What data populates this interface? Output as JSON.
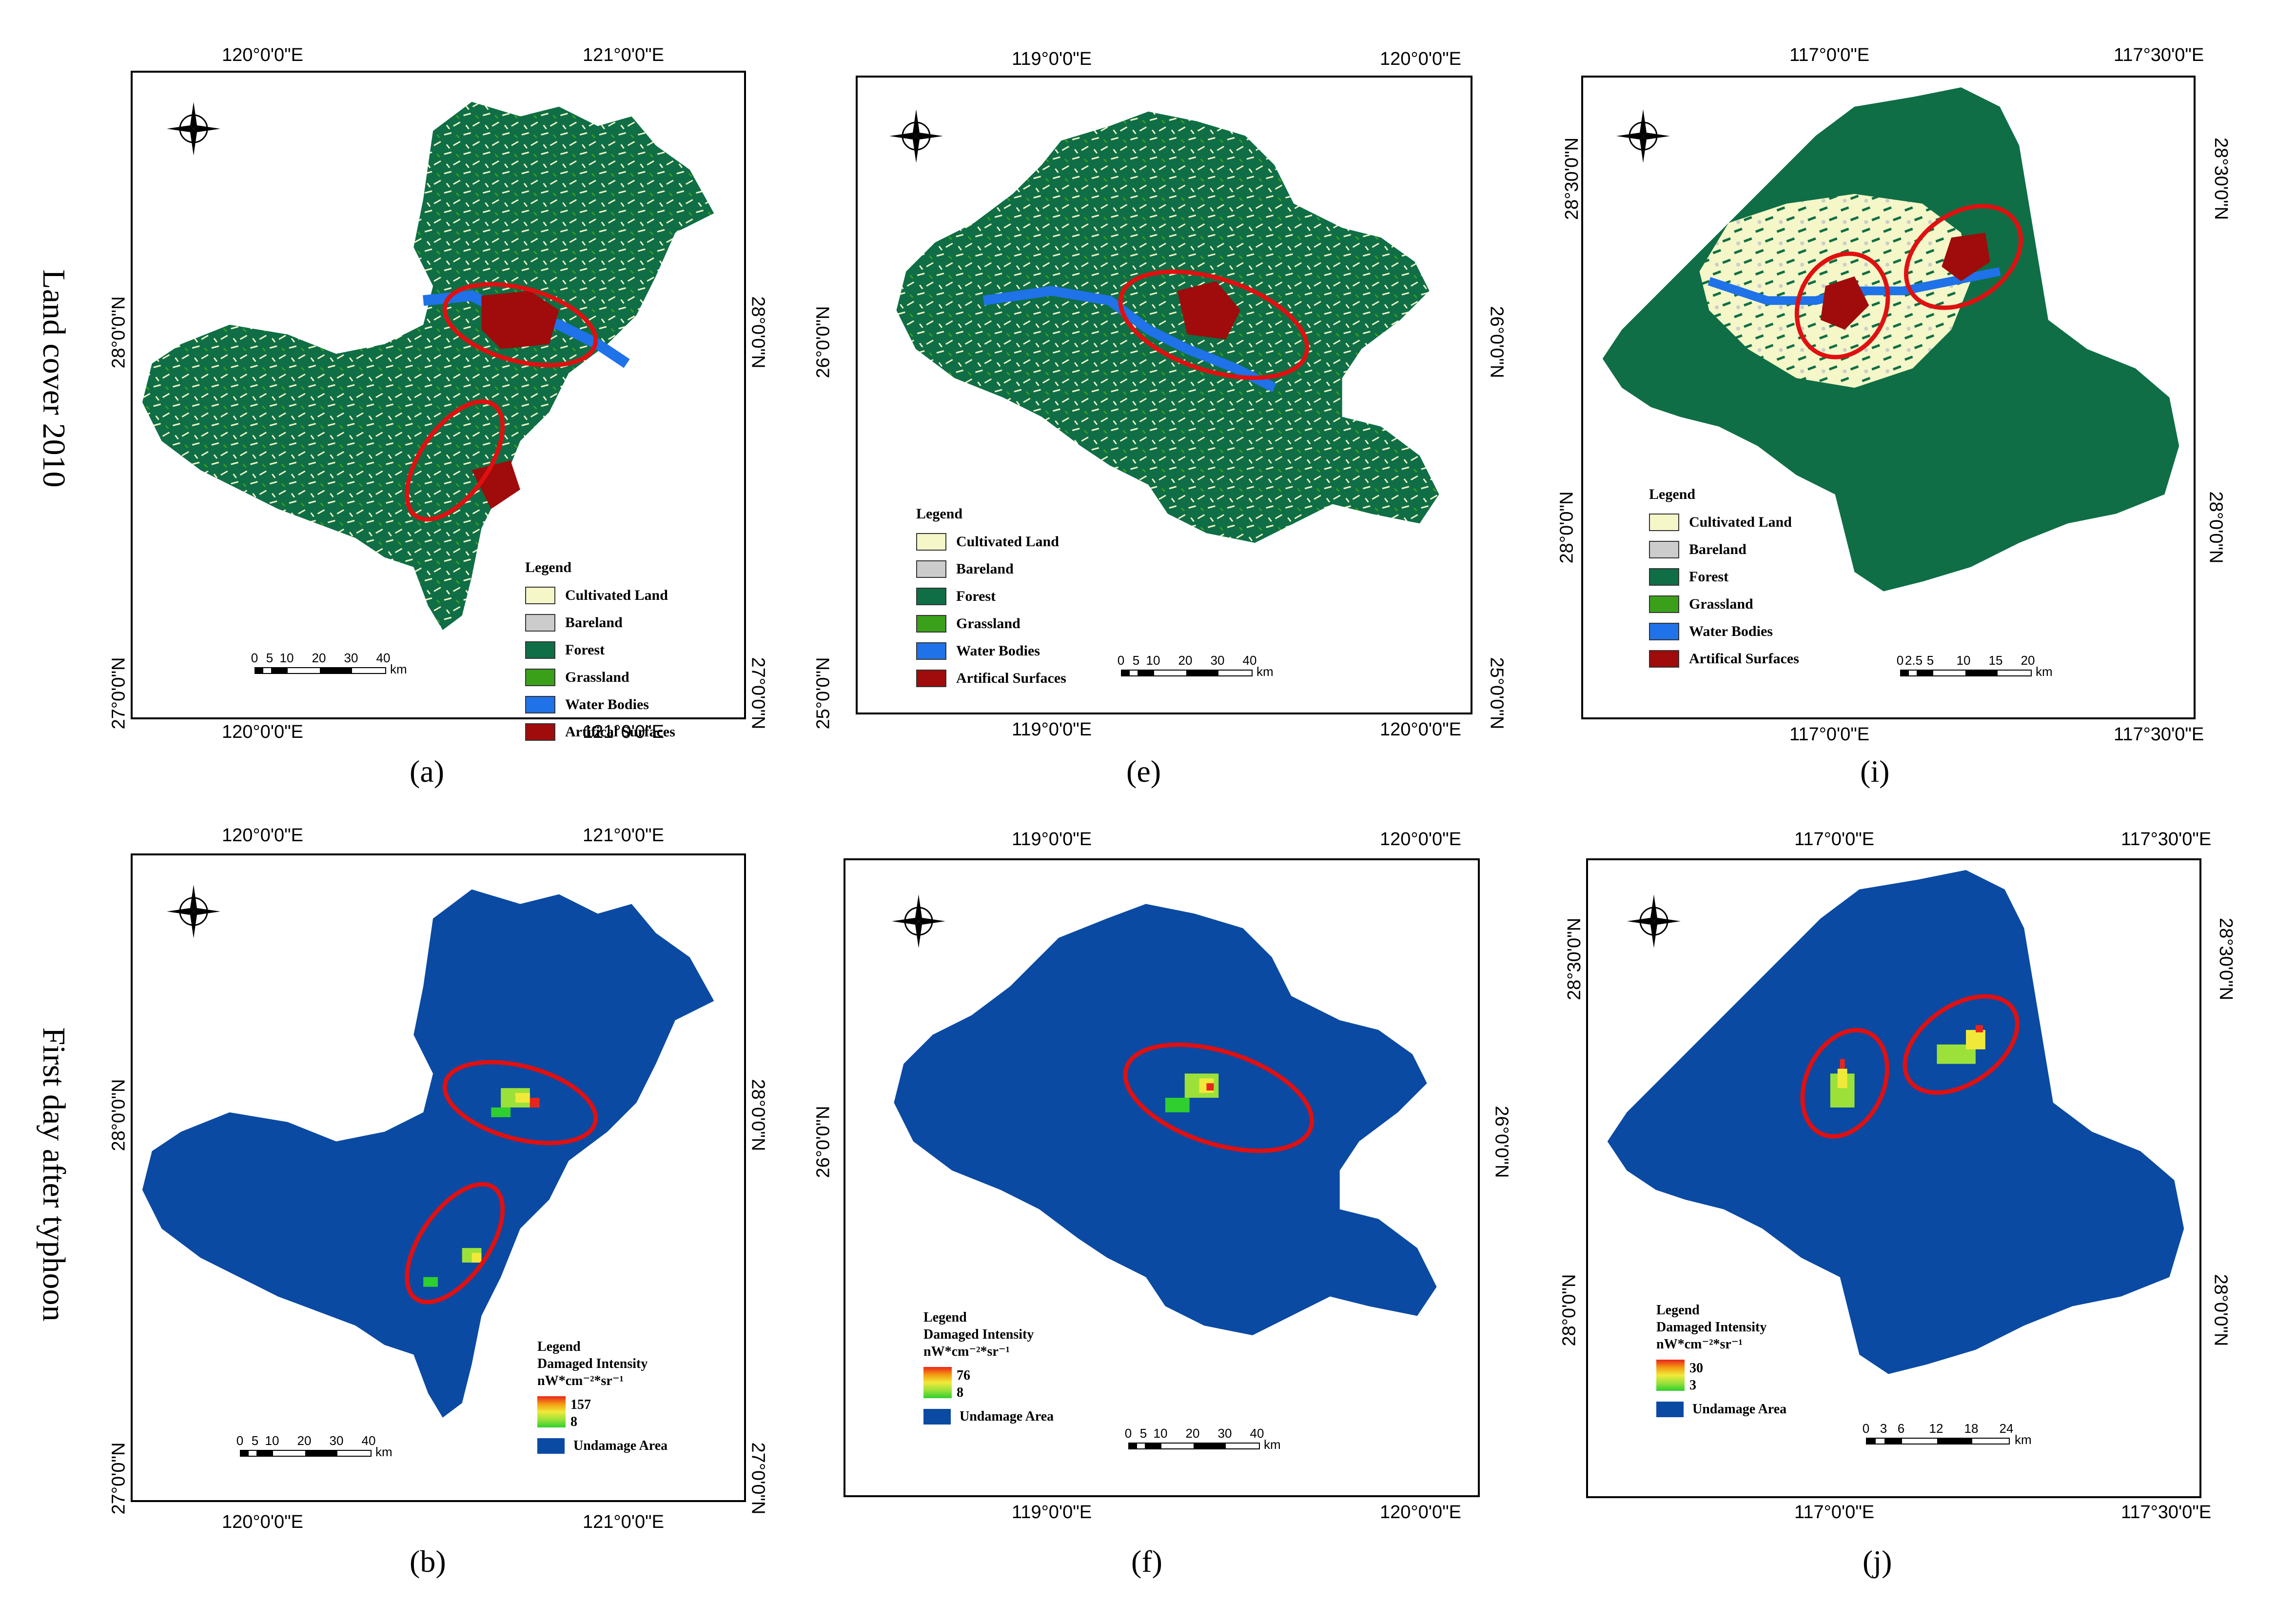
{
  "row_labels": {
    "top": "Land cover 2010",
    "bottom": "First day after typhoon"
  },
  "captions": {
    "a": "(a)",
    "e": "(e)",
    "i": "(i)",
    "b": "(b)",
    "f": "(f)",
    "j": "(j)"
  },
  "compass": {
    "n": "N",
    "s": "S",
    "e": "E",
    "w": "W"
  },
  "land_legend": {
    "title": "Legend",
    "items": [
      {
        "label": "Cultivated Land",
        "color": "#f5f7c8"
      },
      {
        "label": "Bareland",
        "color": "#cccccc"
      },
      {
        "label": "Forest",
        "color": "#0f6e45"
      },
      {
        "label": "Grassland",
        "color": "#3aa01a"
      },
      {
        "label": "Water Bodies",
        "color": "#1f72e8"
      },
      {
        "label": "Artifical Surfaces",
        "color": "#a00b0b"
      }
    ]
  },
  "damage_legend": {
    "title": "Legend",
    "subtitle": "Damaged Intensity",
    "unit": "nW*cm⁻²*sr⁻¹",
    "undamage": "Undamage  Area",
    "a_max": "157",
    "a_min": "8",
    "e_max": "76",
    "e_min": "8",
    "i_max": "30",
    "i_min": "3"
  },
  "colors": {
    "undamaged": "#0a4aa3",
    "ellipse": "#e01010"
  },
  "panels": {
    "a": {
      "top_ticks": [
        "120°0'0\"E",
        "121°0'0\"E"
      ],
      "left_ticks": [
        "28°0'0\"N",
        "27°0'0\"N"
      ],
      "scale": [
        "0",
        "5",
        "10",
        "20",
        "30",
        "40"
      ],
      "unit": "km"
    },
    "e": {
      "top_ticks": [
        "119°0'0\"E",
        "120°0'0\"E"
      ],
      "left_ticks": [
        "26°0'0\"N",
        "25°0'0\"N"
      ],
      "scale": [
        "0",
        "5",
        "10",
        "20",
        "30",
        "40"
      ],
      "unit": "km"
    },
    "i": {
      "top_ticks": [
        "117°0'0\"E",
        "117°30'0\"E"
      ],
      "left_ticks": [
        "28°30'0\"N",
        "28°0'0\"N"
      ],
      "scale": [
        "0",
        "2.5",
        "5",
        "10",
        "15",
        "20"
      ],
      "unit": "km"
    },
    "b": {
      "top_ticks": [
        "120°0'0\"E",
        "121°0'0\"E"
      ],
      "left_ticks": [
        "28°0'0\"N",
        "27°0'0\"N"
      ],
      "scale": [
        "0",
        "5",
        "10",
        "20",
        "30",
        "40"
      ],
      "unit": "km"
    },
    "f": {
      "top_ticks": [
        "119°0'0\"E",
        "120°0'0\"E"
      ],
      "left_ticks": [
        "26°0'0\"N"
      ],
      "scale": [
        "0",
        "5",
        "10",
        "20",
        "30",
        "40"
      ],
      "unit": "km"
    },
    "j": {
      "top_ticks": [
        "117°0'0\"E",
        "117°30'0\"E"
      ],
      "left_ticks": [
        "28°30'0\"N",
        "28°0'0\"N"
      ],
      "scale": [
        "0",
        "3",
        "6",
        "12",
        "18",
        "24"
      ],
      "unit": "km"
    }
  }
}
